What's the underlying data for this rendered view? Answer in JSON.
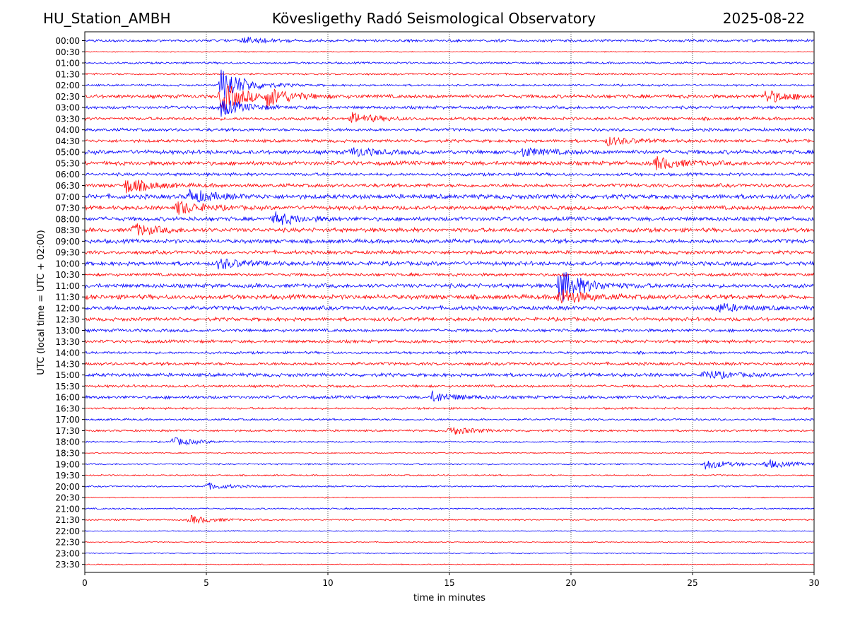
{
  "header": {
    "station": "HU_Station_AMBH",
    "observatory": "Kövesligethy Radó Seismological Observatory",
    "date": "2025-08-22"
  },
  "chart_data": {
    "type": "line",
    "title": "Kövesligethy Radó Seismological Observatory",
    "xlabel": "time in minutes",
    "ylabel": "UTC (local time = UTC + 02:00)",
    "xlim": [
      0,
      30
    ],
    "x_ticks": [
      0,
      5,
      10,
      15,
      20,
      25,
      30
    ],
    "grid": "vertical dotted at 5-minute ticks",
    "colors": {
      "even_rows": "#0000ff",
      "odd_rows": "#ff0000"
    },
    "rows": [
      "00:00",
      "00:30",
      "01:00",
      "01:30",
      "02:00",
      "02:30",
      "03:00",
      "03:30",
      "04:00",
      "04:30",
      "05:00",
      "05:30",
      "06:00",
      "06:30",
      "07:00",
      "07:30",
      "08:00",
      "08:30",
      "09:00",
      "09:30",
      "10:00",
      "10:30",
      "11:00",
      "11:30",
      "12:00",
      "12:30",
      "13:00",
      "13:30",
      "14:00",
      "14:30",
      "15:00",
      "15:30",
      "16:00",
      "16:30",
      "17:00",
      "17:30",
      "18:00",
      "18:30",
      "19:00",
      "19:30",
      "20:00",
      "20:30",
      "21:00",
      "21:30",
      "22:00",
      "22:30",
      "23:00",
      "23:30"
    ],
    "row_base_amplitude": [
      0.25,
      0.1,
      0.2,
      0.18,
      0.2,
      0.35,
      0.3,
      0.3,
      0.3,
      0.3,
      0.4,
      0.4,
      0.3,
      0.35,
      0.45,
      0.4,
      0.4,
      0.4,
      0.4,
      0.35,
      0.4,
      0.3,
      0.4,
      0.45,
      0.4,
      0.35,
      0.3,
      0.3,
      0.25,
      0.3,
      0.35,
      0.25,
      0.3,
      0.2,
      0.2,
      0.2,
      0.15,
      0.1,
      0.15,
      0.15,
      0.15,
      0.1,
      0.15,
      0.15,
      0.1,
      0.1,
      0.1,
      0.1
    ],
    "events": [
      {
        "row": "00:00",
        "minute": 6.5,
        "amplitude": 0.8
      },
      {
        "row": "02:00",
        "minute": 5.6,
        "amplitude": 4.0
      },
      {
        "row": "02:30",
        "minute": 5.6,
        "amplitude": 3.5
      },
      {
        "row": "02:30",
        "minute": 7.5,
        "amplitude": 2.0
      },
      {
        "row": "02:30",
        "minute": 28.0,
        "amplitude": 1.5
      },
      {
        "row": "03:00",
        "minute": 5.6,
        "amplitude": 2.0
      },
      {
        "row": "03:30",
        "minute": 11.0,
        "amplitude": 1.2
      },
      {
        "row": "04:30",
        "minute": 21.5,
        "amplitude": 1.0
      },
      {
        "row": "05:00",
        "minute": 11.0,
        "amplitude": 1.0
      },
      {
        "row": "05:00",
        "minute": 18.0,
        "amplitude": 1.0
      },
      {
        "row": "05:30",
        "minute": 23.5,
        "amplitude": 1.5
      },
      {
        "row": "06:30",
        "minute": 1.7,
        "amplitude": 1.8
      },
      {
        "row": "07:00",
        "minute": 4.3,
        "amplitude": 1.5
      },
      {
        "row": "07:30",
        "minute": 3.8,
        "amplitude": 1.6
      },
      {
        "row": "08:00",
        "minute": 7.8,
        "amplitude": 1.5
      },
      {
        "row": "08:30",
        "minute": 2.0,
        "amplitude": 1.4
      },
      {
        "row": "10:00",
        "minute": 5.5,
        "amplitude": 1.2
      },
      {
        "row": "11:00",
        "minute": 19.5,
        "amplitude": 4.0
      },
      {
        "row": "11:30",
        "minute": 19.5,
        "amplitude": 2.0
      },
      {
        "row": "12:00",
        "minute": 26.0,
        "amplitude": 1.0
      },
      {
        "row": "15:00",
        "minute": 25.5,
        "amplitude": 1.0
      },
      {
        "row": "16:00",
        "minute": 14.3,
        "amplitude": 1.2
      },
      {
        "row": "17:30",
        "minute": 15.0,
        "amplitude": 1.0
      },
      {
        "row": "18:00",
        "minute": 3.6,
        "amplitude": 1.0
      },
      {
        "row": "19:00",
        "minute": 25.5,
        "amplitude": 1.2
      },
      {
        "row": "19:00",
        "minute": 28.0,
        "amplitude": 1.0
      },
      {
        "row": "20:00",
        "minute": 5.0,
        "amplitude": 0.8
      },
      {
        "row": "21:30",
        "minute": 4.3,
        "amplitude": 1.0
      }
    ]
  }
}
